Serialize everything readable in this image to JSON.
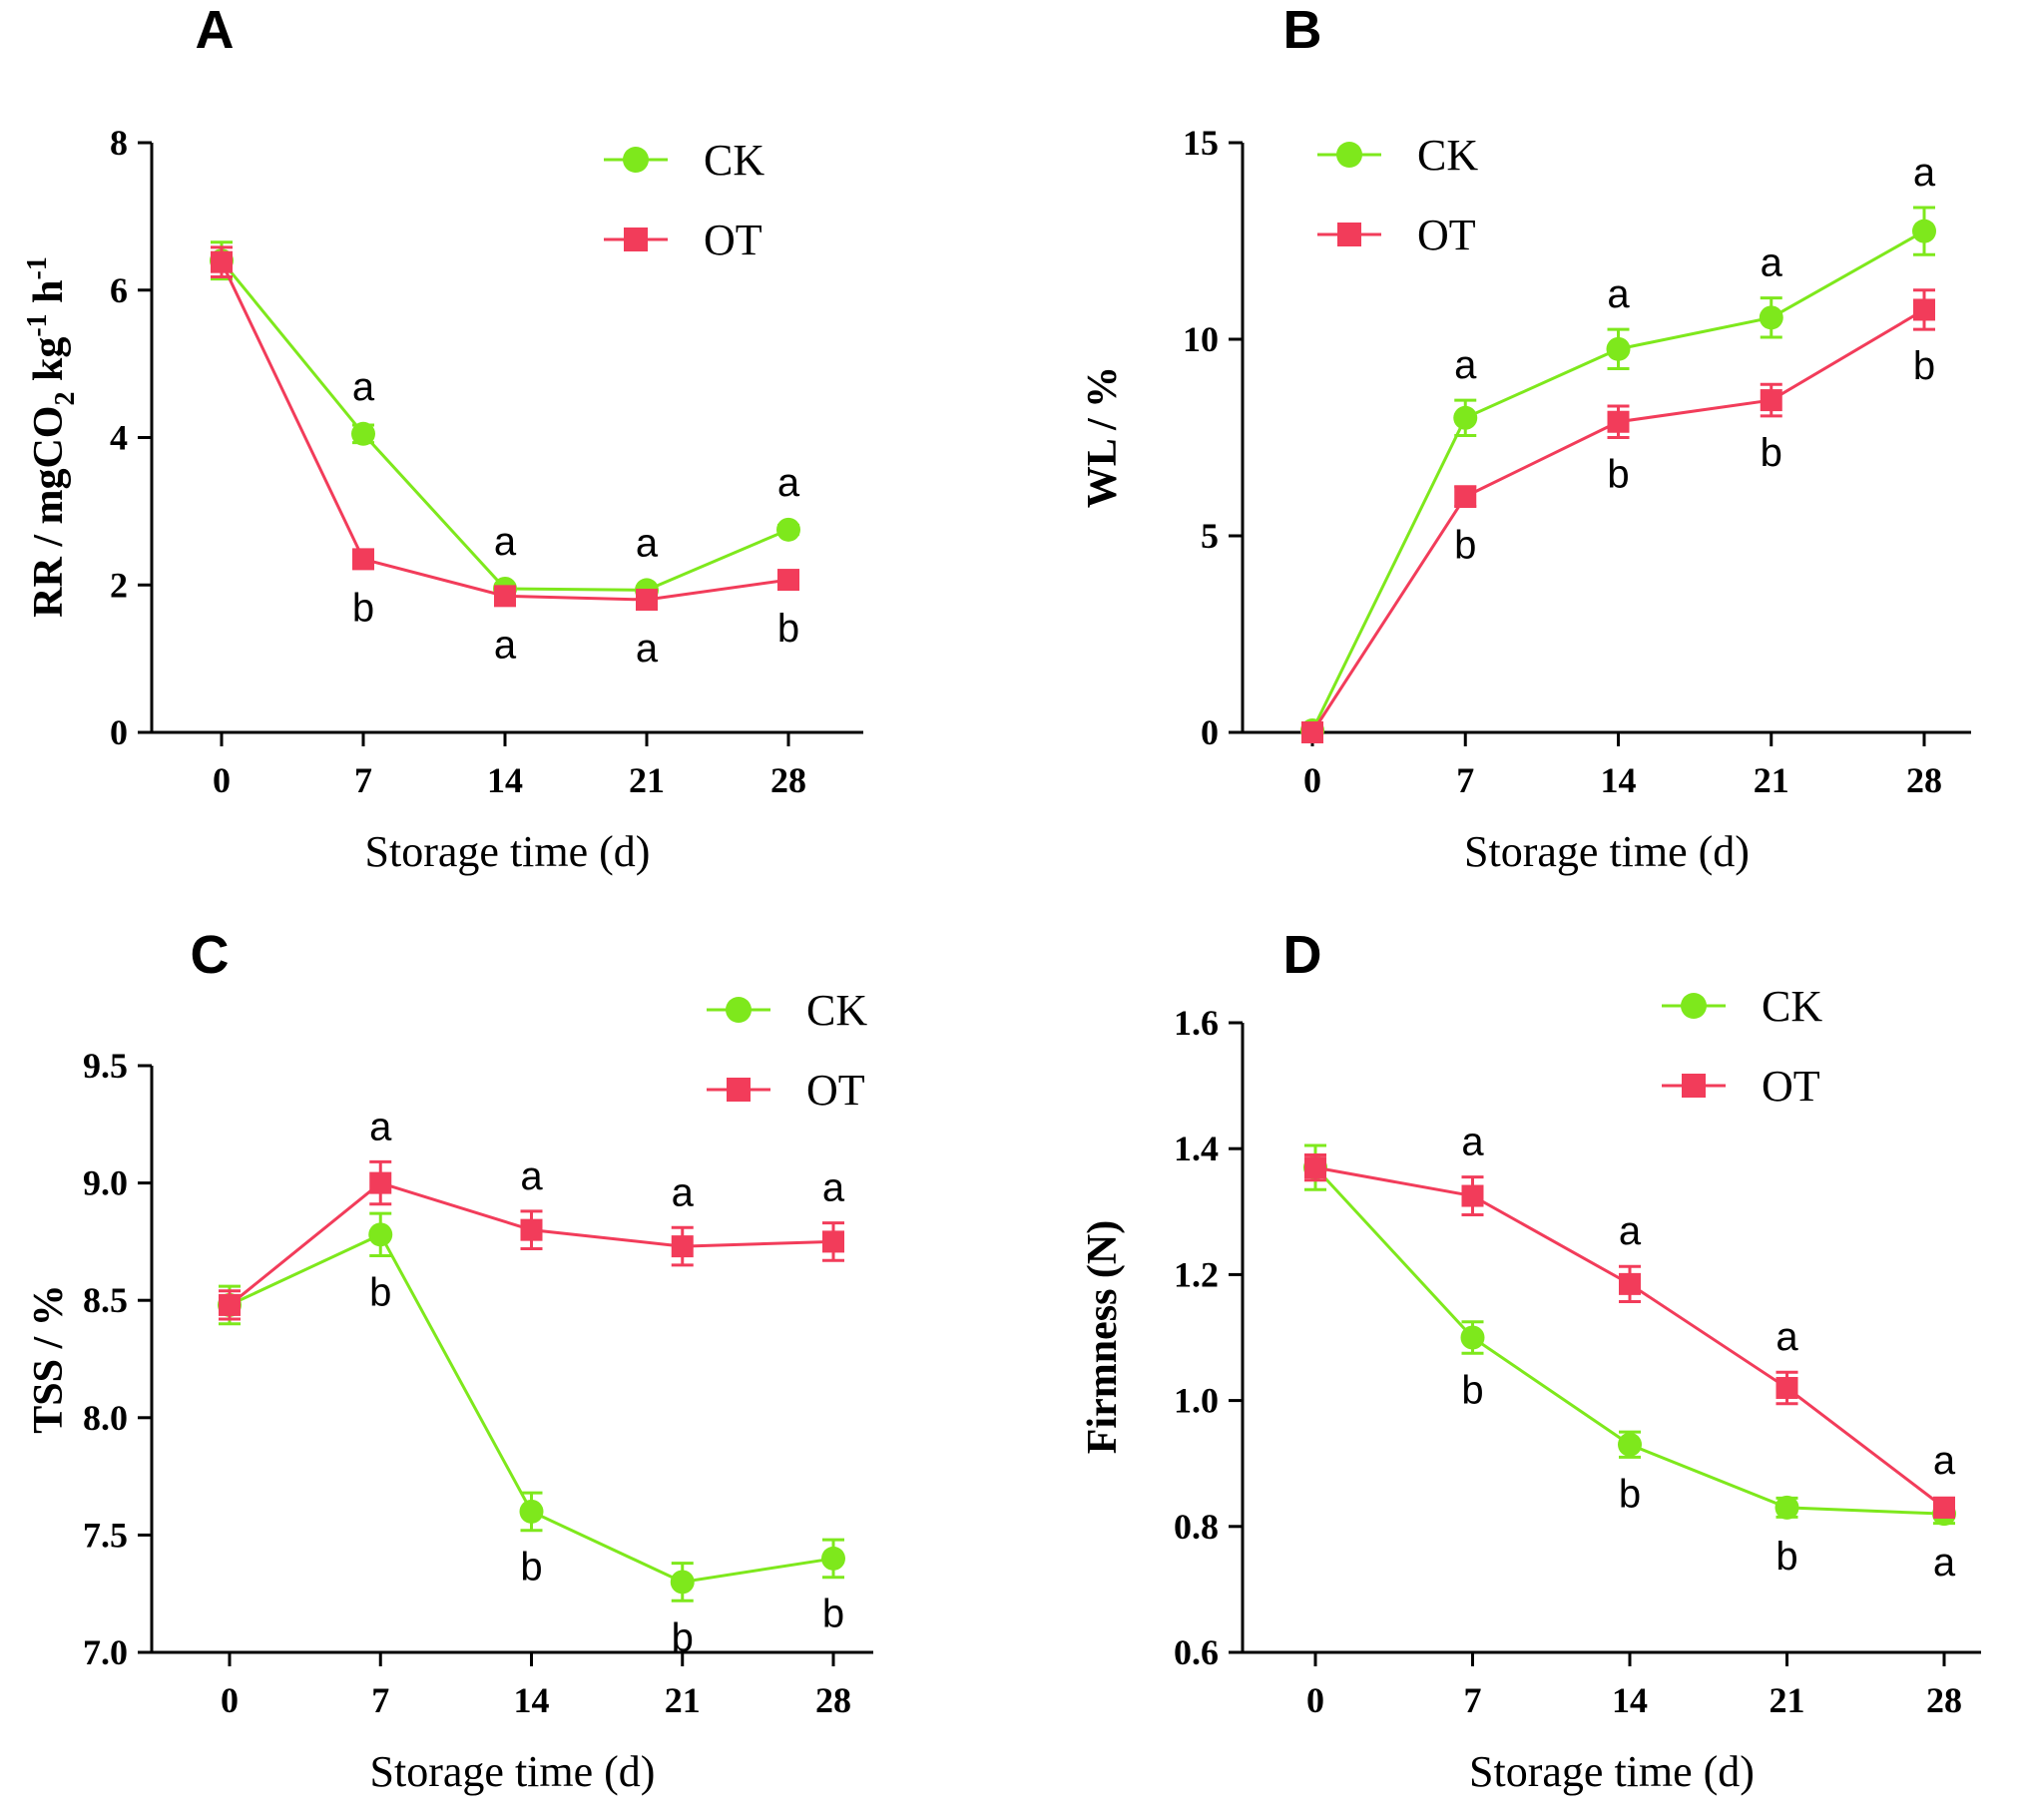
{
  "chart_data": [
    {
      "type": "line",
      "panel": "A",
      "ylabel": "RR / mgCO2 kg-1 h-1",
      "ylabel_parts": {
        "main": "RR / mgCO",
        "sub2": "2",
        "kg": " kg",
        "sup1": "-1",
        "h": " h",
        "sup2": "-1"
      },
      "xlabel": "Storage time (d)",
      "x": [
        0,
        7,
        14,
        21,
        28
      ],
      "ylim": [
        0,
        8
      ],
      "yticks": [
        0,
        2,
        4,
        6,
        8
      ],
      "ytick_labels": [
        "0",
        "2",
        "4",
        "6",
        "8"
      ],
      "legend_position": "top-right",
      "series": [
        {
          "name": "CK",
          "marker": "circle",
          "color": "#7ee81c",
          "values": [
            6.4,
            4.05,
            1.95,
            1.93,
            2.75
          ],
          "errors": [
            0.25,
            0.12,
            0.05,
            0.05,
            0.06
          ],
          "labels": [
            "",
            "a",
            "a",
            "a",
            "a"
          ],
          "label_pos": "above"
        },
        {
          "name": "OT",
          "marker": "square",
          "color": "#f23c5a",
          "values": [
            6.38,
            2.35,
            1.85,
            1.8,
            2.07
          ],
          "errors": [
            0.2,
            0.07,
            0.05,
            0.05,
            0.06
          ],
          "labels": [
            "",
            "b",
            "a",
            "a",
            "b"
          ],
          "label_pos": "below"
        }
      ]
    },
    {
      "type": "line",
      "panel": "B",
      "ylabel": "WL / %",
      "xlabel": "Storage time (d)",
      "x": [
        0,
        7,
        14,
        21,
        28
      ],
      "ylim": [
        0,
        15
      ],
      "yticks": [
        0,
        5,
        10,
        15
      ],
      "ytick_labels": [
        "0",
        "5",
        "10",
        "15"
      ],
      "legend_position": "top-left",
      "series": [
        {
          "name": "CK",
          "marker": "circle",
          "color": "#7ee81c",
          "values": [
            0.05,
            8.0,
            9.75,
            10.55,
            12.75
          ],
          "errors": [
            0.1,
            0.45,
            0.5,
            0.5,
            0.6
          ],
          "labels": [
            "",
            "a",
            "a",
            "a",
            "a"
          ],
          "label_pos": "above"
        },
        {
          "name": "OT",
          "marker": "square",
          "color": "#f23c5a",
          "values": [
            0.0,
            6.0,
            7.9,
            8.45,
            10.75
          ],
          "errors": [
            0.1,
            0.25,
            0.4,
            0.4,
            0.5
          ],
          "labels": [
            "",
            "b",
            "b",
            "b",
            "b"
          ],
          "label_pos": "below"
        }
      ]
    },
    {
      "type": "line",
      "panel": "C",
      "ylabel": "TSS / %",
      "xlabel": "Storage time (d)",
      "x": [
        0,
        7,
        14,
        21,
        28
      ],
      "ylim": [
        7.0,
        9.5
      ],
      "yticks": [
        7.0,
        7.5,
        8.0,
        8.5,
        9.0,
        9.5
      ],
      "ytick_labels": [
        "7.0",
        "7.5",
        "8.0",
        "8.5",
        "9.0",
        "9.5"
      ],
      "legend_position": "top-right",
      "series": [
        {
          "name": "CK",
          "marker": "circle",
          "color": "#7ee81c",
          "values": [
            8.48,
            8.78,
            7.6,
            7.3,
            7.4
          ],
          "errors": [
            0.08,
            0.09,
            0.08,
            0.08,
            0.08
          ],
          "labels": [
            "",
            "b",
            "b",
            "b",
            "b"
          ],
          "label_pos": "below"
        },
        {
          "name": "OT",
          "marker": "square",
          "color": "#f23c5a",
          "values": [
            8.48,
            9.0,
            8.8,
            8.73,
            8.75
          ],
          "errors": [
            0.06,
            0.09,
            0.08,
            0.08,
            0.08
          ],
          "labels": [
            "",
            "a",
            "a",
            "a",
            "a"
          ],
          "label_pos": "above"
        }
      ]
    },
    {
      "type": "line",
      "panel": "D",
      "ylabel": "Firmness (N)",
      "xlabel": "Storage time (d)",
      "x": [
        0,
        7,
        14,
        21,
        28
      ],
      "ylim": [
        0.6,
        1.6
      ],
      "yticks": [
        0.6,
        0.8,
        1.0,
        1.2,
        1.4,
        1.6
      ],
      "ytick_labels": [
        "0.6",
        "0.8",
        "1.0",
        "1.2",
        "1.4",
        "1.6"
      ],
      "legend_position": "top-right",
      "series": [
        {
          "name": "CK",
          "marker": "circle",
          "color": "#7ee81c",
          "values": [
            1.37,
            1.1,
            0.93,
            0.83,
            0.82
          ],
          "errors": [
            0.035,
            0.025,
            0.02,
            0.015,
            0.015
          ],
          "labels": [
            "",
            "b",
            "b",
            "b",
            "a"
          ],
          "label_pos": "below"
        },
        {
          "name": "OT",
          "marker": "square",
          "color": "#f23c5a",
          "values": [
            1.37,
            1.325,
            1.185,
            1.02,
            0.83
          ],
          "errors": [
            0.02,
            0.03,
            0.028,
            0.025,
            0.015
          ],
          "labels": [
            "",
            "a",
            "a",
            "a",
            "a"
          ],
          "label_pos": "above"
        }
      ]
    }
  ]
}
